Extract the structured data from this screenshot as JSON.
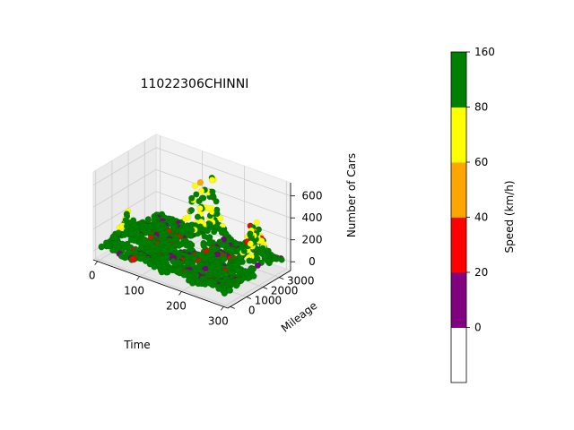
{
  "chart_data": {
    "type": "scatter",
    "projection": "3d",
    "title": "11022306CHINNI",
    "xlabel": "Time",
    "ylabel": "Mileage",
    "zlabel": "Number of Cars",
    "xlim": [
      -10,
      310
    ],
    "ylim": [
      -150,
      3700
    ],
    "zlim": [
      -80,
      720
    ],
    "x_ticks": [
      0,
      100,
      200,
      300
    ],
    "y_ticks": [
      0,
      1000,
      2000,
      3000
    ],
    "z_ticks": [
      0,
      200,
      400,
      600
    ],
    "grid": true,
    "colorbar": {
      "label": "Speed (km/h)",
      "range": [
        -20,
        160
      ],
      "ticks": [
        0,
        20,
        40,
        60,
        80,
        160
      ],
      "bins": [
        {
          "from": -20,
          "to": 0,
          "color": "#ffffff"
        },
        {
          "from": 0,
          "to": 20,
          "color": "#800080"
        },
        {
          "from": 20,
          "to": 40,
          "color": "#ff0000"
        },
        {
          "from": 40,
          "to": 60,
          "color": "#ffa500"
        },
        {
          "from": 60,
          "to": 80,
          "color": "#ffff00"
        },
        {
          "from": 80,
          "to": 160,
          "color": "#008000"
        }
      ]
    },
    "peaks": [
      {
        "time": 30,
        "mileage": 900,
        "cars": 300
      },
      {
        "time": 130,
        "mileage": 2500,
        "cars": 520
      },
      {
        "time": 150,
        "mileage": 3000,
        "cars": 560
      },
      {
        "time": 260,
        "mileage": 2800,
        "cars": 380
      },
      {
        "time": 280,
        "mileage": 2200,
        "cars": 330
      }
    ]
  }
}
